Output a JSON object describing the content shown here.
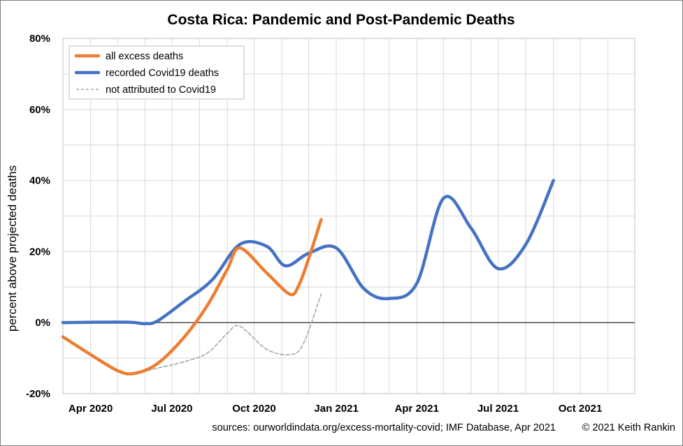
{
  "chart_data": {
    "type": "line",
    "title_country": "Costa Rica",
    "title_rest": ": Pandemic and Post-Pandemic Deaths",
    "ylabel": "percent above projected deaths",
    "xlabel": "",
    "ylim": [
      -20,
      80
    ],
    "y_ticks": [
      {
        "value": 80,
        "label": "80%"
      },
      {
        "value": 60,
        "label": "60%"
      },
      {
        "value": 40,
        "label": "40%"
      },
      {
        "value": 20,
        "label": "20%"
      },
      {
        "value": 0,
        "label": "0%"
      },
      {
        "value": -20,
        "label": "-20%"
      }
    ],
    "xlim": [
      "2020-03-01",
      "2021-12-01"
    ],
    "x_ticks": [
      {
        "date": "2020-04-01",
        "label": "Apr 2020"
      },
      {
        "date": "2020-07-01",
        "label": "Jul 2020"
      },
      {
        "date": "2020-10-01",
        "label": "Oct 2020"
      },
      {
        "date": "2021-01-01",
        "label": "Jan 2021"
      },
      {
        "date": "2021-04-01",
        "label": "Apr 2021"
      },
      {
        "date": "2021-07-01",
        "label": "Jul 2021"
      },
      {
        "date": "2021-10-01",
        "label": "Oct 2021"
      }
    ],
    "grid": true,
    "legend_position": "top-left",
    "series": [
      {
        "name": "all excess deaths",
        "color": "#ed7d31",
        "style": "solid",
        "points": [
          [
            "2020-03-01",
            -4
          ],
          [
            "2020-04-01",
            -9
          ],
          [
            "2020-05-01",
            -13.5
          ],
          [
            "2020-05-20",
            -14.3
          ],
          [
            "2020-06-15",
            -11.5
          ],
          [
            "2020-07-15",
            -4
          ],
          [
            "2020-08-10",
            5
          ],
          [
            "2020-09-01",
            15
          ],
          [
            "2020-09-15",
            21
          ],
          [
            "2020-10-15",
            14
          ],
          [
            "2020-11-10",
            8
          ],
          [
            "2020-11-20",
            10.5
          ],
          [
            "2020-12-01",
            18
          ],
          [
            "2020-12-15",
            29
          ]
        ]
      },
      {
        "name": "recorded Covid19 deaths",
        "color": "#4472c4",
        "style": "solid",
        "points": [
          [
            "2020-03-01",
            0
          ],
          [
            "2020-04-01",
            0.1
          ],
          [
            "2020-05-15",
            0.1
          ],
          [
            "2020-06-01",
            -0.3
          ],
          [
            "2020-06-15",
            0.5
          ],
          [
            "2020-07-15",
            6
          ],
          [
            "2020-08-15",
            12
          ],
          [
            "2020-09-15",
            22
          ],
          [
            "2020-10-15",
            21.5
          ],
          [
            "2020-11-05",
            16
          ],
          [
            "2020-12-01",
            19.5
          ],
          [
            "2021-01-01",
            21
          ],
          [
            "2021-02-01",
            9.5
          ],
          [
            "2021-03-01",
            6.8
          ],
          [
            "2021-04-01",
            11
          ],
          [
            "2021-05-01",
            35
          ],
          [
            "2021-06-01",
            26.5
          ],
          [
            "2021-07-01",
            15.2
          ],
          [
            "2021-08-01",
            22
          ],
          [
            "2021-09-01",
            40
          ]
        ]
      },
      {
        "name": "not attributed to Covid19",
        "color": "#a5a5a5",
        "style": "dashed",
        "points": [
          [
            "2020-03-01",
            -4
          ],
          [
            "2020-04-01",
            -9
          ],
          [
            "2020-05-01",
            -13.5
          ],
          [
            "2020-05-20",
            -14.3
          ],
          [
            "2020-06-15",
            -12.8
          ],
          [
            "2020-07-15",
            -11
          ],
          [
            "2020-08-10",
            -8.5
          ],
          [
            "2020-09-01",
            -3
          ],
          [
            "2020-09-15",
            -1
          ],
          [
            "2020-10-15",
            -7.5
          ],
          [
            "2020-11-10",
            -9
          ],
          [
            "2020-11-25",
            -6
          ],
          [
            "2020-12-15",
            8
          ]
        ]
      }
    ]
  },
  "footer": {
    "sources": "sources:  ourworldindata.org/excess-mortality-covid;  IMF Database, Apr 2021",
    "copyright": "© 2021 Keith Rankin"
  }
}
